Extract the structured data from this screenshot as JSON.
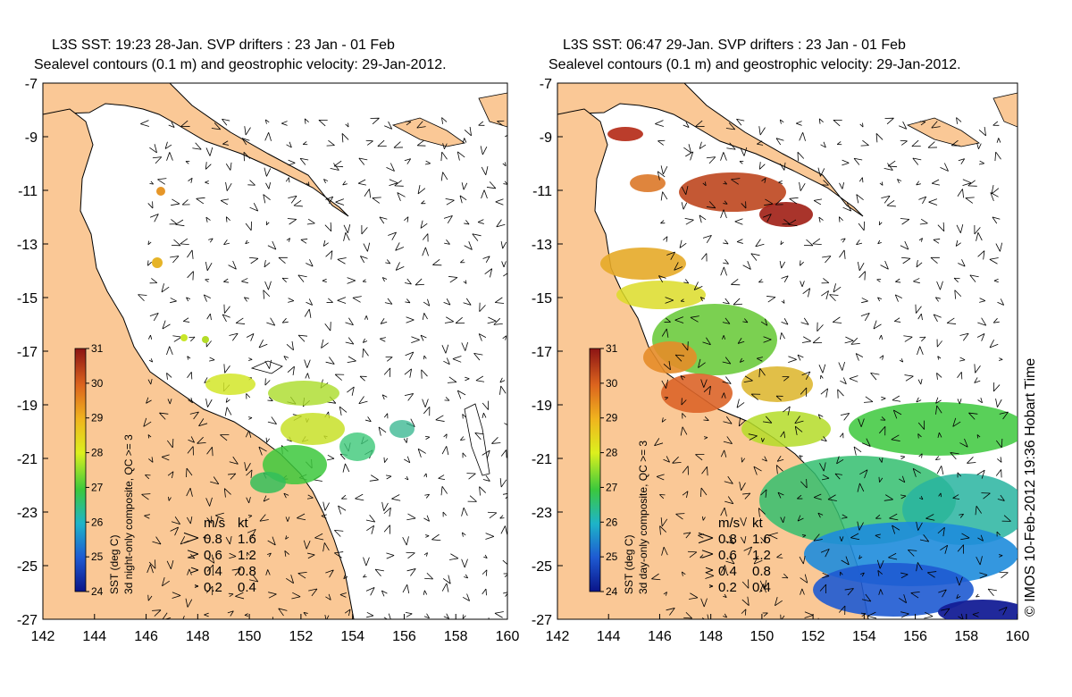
{
  "panels": [
    {
      "title_line1": "L3S SST: 19:23 28-Jan. SVP drifters : 23 Jan - 01 Feb",
      "title_line2": "Sealevel contours (0.1 m) and geostrophic velocity: 29-Jan-2012.",
      "colorbar_label_1": "SST (deg C)",
      "colorbar_label_2": "3d night-only composite, QC >= 3"
    },
    {
      "title_line1": "L3S SST: 06:47 29-Jan. SVP drifters : 23 Jan - 01 Feb",
      "title_line2": "Sealevel contours (0.1 m) and geostrophic velocity: 29-Jan-2012.",
      "colorbar_label_1": "SST (deg C)",
      "colorbar_label_2": "3d day-only composite, QC >= 3"
    }
  ],
  "axes": {
    "x_ticks": [
      "142",
      "144",
      "146",
      "148",
      "150",
      "152",
      "154",
      "156",
      "158",
      "160"
    ],
    "y_ticks": [
      "-7",
      "-9",
      "-11",
      "-13",
      "-15",
      "-17",
      "-19",
      "-21",
      "-23",
      "-25",
      "-27"
    ]
  },
  "colorbar": {
    "ticks": [
      "31",
      "30",
      "29",
      "28",
      "27",
      "26",
      "25",
      "24"
    ],
    "range": [
      24,
      31
    ]
  },
  "velocity_legend": {
    "header_ms": "m/s",
    "header_kt": "kt",
    "rows": [
      {
        "ms": "0.8",
        "kt": "1.6"
      },
      {
        "ms": "0.6",
        "kt": "1.2"
      },
      {
        "ms": "0.4",
        "kt": "0.8"
      },
      {
        "ms": "0.2",
        "kt": "0.4"
      }
    ]
  },
  "credit": "© IMOS 10-Feb-2012 19:36 Hobart Time",
  "colors": {
    "land": "#fac896",
    "ocean": "#ffffff",
    "vector": "#000000"
  }
}
